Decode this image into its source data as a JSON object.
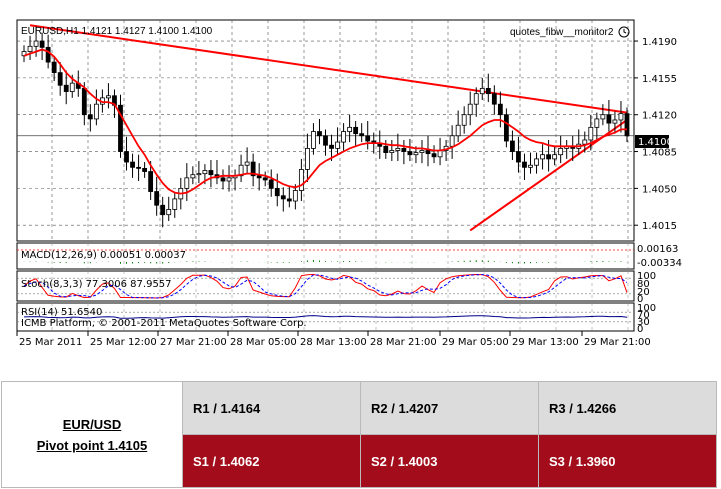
{
  "chart": {
    "title": "EURUSD,H1  1.4121 1.4127 1.4100 1.4100",
    "watermark": "quotes_fibw__monitor2",
    "price_labels": [
      "1.4190",
      "1.4155",
      "1.4120",
      "1.4085",
      "1.4050",
      "1.4015"
    ],
    "current_price": "1.4100",
    "macd_label": "MACD(12,26,9) 0.00051 0.00037",
    "macd_scale": [
      "0.00163",
      "-0.00334"
    ],
    "stoch_label": "Stoch(8,3,3) 77.3006 87.9557",
    "stoch_scale": [
      "100",
      "80",
      "20",
      "0"
    ],
    "rsi_label": "RSI(14) 51.6540",
    "copyright": "ICMB Platform, © 2001-2011 MetaQuotes Software Corp.",
    "rsi_scale": [
      "100",
      "70",
      "30",
      "0"
    ],
    "time_labels": [
      "25 Mar 2011",
      "25 Mar 12:00",
      "27 Mar 21:00",
      "28 Mar 05:00",
      "28 Mar 13:00",
      "28 Mar 21:00",
      "29 Mar 05:00",
      "29 Mar 13:00",
      "29 Mar 21:00"
    ],
    "colors": {
      "bg": "#ffffff",
      "candle": "#000000",
      "ma": "#ff0000",
      "trend": "#ff0000",
      "macd_hist": "#008000",
      "stoch_main": "#ff0000",
      "stoch_signal": "#0000ff",
      "rsi": "#00008b"
    }
  },
  "chart_data": {
    "type": "candlestick",
    "symbol": "EURUSD",
    "timeframe": "H1",
    "ylim": [
      1.4,
      1.421
    ],
    "open": [
      1.4176,
      1.418,
      1.4185,
      1.419,
      1.4184,
      1.417,
      1.416,
      1.4148,
      1.4142,
      1.415,
      1.4145,
      1.412,
      1.4116,
      1.413,
      1.4136,
      1.4138,
      1.4129,
      1.4085,
      1.4075,
      1.407,
      1.4069,
      1.4066,
      1.4047,
      1.4034,
      1.4025,
      1.403,
      1.404,
      1.405,
      1.406,
      1.4063,
      1.4064,
      1.4067,
      1.4063,
      1.406,
      1.4057,
      1.406,
      1.4062,
      1.4072,
      1.4075,
      1.4062,
      1.406,
      1.4058,
      1.405,
      1.4043,
      1.404,
      1.4038,
      1.4048,
      1.4068,
      1.4088,
      1.4104,
      1.41,
      1.4091,
      1.4088,
      1.4094,
      1.4104,
      1.4108,
      1.4102,
      1.41,
      1.4095,
      1.4093,
      1.409,
      1.4084,
      1.4086,
      1.4088,
      1.4085,
      1.4082,
      1.4084,
      1.4086,
      1.4083,
      1.408,
      1.4086,
      1.409,
      1.41,
      1.411,
      1.412,
      1.413,
      1.414,
      1.4145,
      1.414,
      1.413,
      1.412,
      1.4095,
      1.4085,
      1.4075,
      1.407,
      1.4072,
      1.4078,
      1.4082,
      1.4078,
      1.4082,
      1.4088,
      1.409,
      1.4088,
      1.4092,
      1.4096,
      1.4108,
      1.4116,
      1.412,
      1.4112,
      1.4115,
      1.4121
    ],
    "close": [
      1.418,
      1.4185,
      1.419,
      1.4184,
      1.417,
      1.416,
      1.4148,
      1.4142,
      1.415,
      1.4145,
      1.412,
      1.4116,
      1.413,
      1.4136,
      1.4138,
      1.4129,
      1.4085,
      1.4075,
      1.407,
      1.4069,
      1.4066,
      1.4047,
      1.4034,
      1.4025,
      1.403,
      1.404,
      1.405,
      1.406,
      1.4063,
      1.4064,
      1.4067,
      1.4063,
      1.406,
      1.4057,
      1.406,
      1.4062,
      1.4072,
      1.4075,
      1.4062,
      1.406,
      1.4058,
      1.405,
      1.4043,
      1.404,
      1.4038,
      1.4048,
      1.4068,
      1.4088,
      1.4104,
      1.41,
      1.4091,
      1.4088,
      1.4094,
      1.4104,
      1.4108,
      1.4102,
      1.41,
      1.4095,
      1.4093,
      1.409,
      1.4084,
      1.4086,
      1.4088,
      1.4085,
      1.4082,
      1.4084,
      1.4086,
      1.4083,
      1.408,
      1.4086,
      1.409,
      1.41,
      1.411,
      1.412,
      1.413,
      1.414,
      1.4145,
      1.414,
      1.413,
      1.412,
      1.4095,
      1.4085,
      1.4075,
      1.407,
      1.4072,
      1.4078,
      1.4082,
      1.4078,
      1.4082,
      1.4088,
      1.409,
      1.4088,
      1.4092,
      1.4096,
      1.4108,
      1.4116,
      1.412,
      1.4112,
      1.4115,
      1.4121,
      1.41
    ],
    "moving_average": [
      1.4176,
      1.4178,
      1.418,
      1.4182,
      1.418,
      1.4175,
      1.4168,
      1.416,
      1.4154,
      1.415,
      1.4146,
      1.414,
      1.4135,
      1.4132,
      1.4132,
      1.413,
      1.412,
      1.411,
      1.41,
      1.409,
      1.4082,
      1.4072,
      1.4063,
      1.4055,
      1.4049,
      1.4046,
      1.4045,
      1.4046,
      1.4049,
      1.4053,
      1.4057,
      1.406,
      1.4061,
      1.4062,
      1.4062,
      1.4062,
      1.4063,
      1.4064,
      1.4064,
      1.4063,
      1.4062,
      1.406,
      1.4057,
      1.4054,
      1.4052,
      1.4051,
      1.4053,
      1.4058,
      1.4065,
      1.4072,
      1.4076,
      1.4079,
      1.4082,
      1.4085,
      1.4088,
      1.409,
      1.4092,
      1.4093,
      1.4093,
      1.4093,
      1.4092,
      1.4091,
      1.4091,
      1.409,
      1.4089,
      1.4088,
      1.4088,
      1.4087,
      1.4086,
      1.4086,
      1.4087,
      1.4089,
      1.4092,
      1.4096,
      1.41,
      1.4105,
      1.411,
      1.4113,
      1.4115,
      1.4115,
      1.4112,
      1.4108,
      1.4104,
      1.4099,
      1.4096,
      1.4094,
      1.4093,
      1.4091,
      1.409,
      1.409,
      1.409,
      1.409,
      1.409,
      1.4091,
      1.4093,
      1.4096,
      1.4099,
      1.4101,
      1.4103,
      1.4106,
      1.4106
    ],
    "trendlines": [
      {
        "from": [
          1,
          1.4205
        ],
        "to": [
          100,
          1.4122
        ]
      },
      {
        "from": [
          74,
          1.401
        ],
        "to": [
          100,
          1.4115
        ]
      }
    ]
  },
  "pivot": {
    "pair": "EUR/USD",
    "pivot_label": "Pivot point 1.4105",
    "resistance": [
      "R1 / 1.4164",
      "R2 / 1.4207",
      "R3 / 1.4266"
    ],
    "support": [
      "S1 / 1.4062",
      "S2 / 1.4003",
      "S3 / 1.3960"
    ]
  }
}
